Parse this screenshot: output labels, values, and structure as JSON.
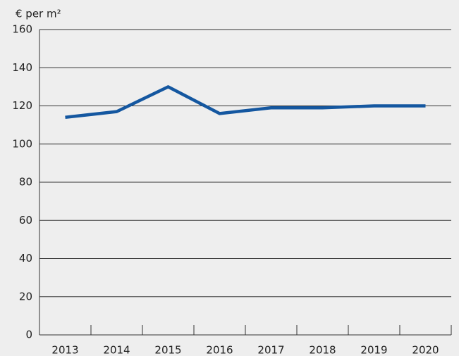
{
  "chart_data": {
    "type": "line",
    "y_axis_label": "€ per m²",
    "categories": [
      "2013",
      "2014",
      "2015",
      "2016",
      "2017",
      "2018",
      "2019",
      "2020"
    ],
    "series": [
      {
        "name": null,
        "color": "#1457a0",
        "values": [
          114,
          117,
          130,
          116,
          119,
          119,
          120,
          120
        ]
      }
    ],
    "ylim": [
      0,
      160
    ],
    "yticks": [
      0,
      20,
      40,
      60,
      80,
      100,
      120,
      140,
      160
    ],
    "grid": true
  }
}
